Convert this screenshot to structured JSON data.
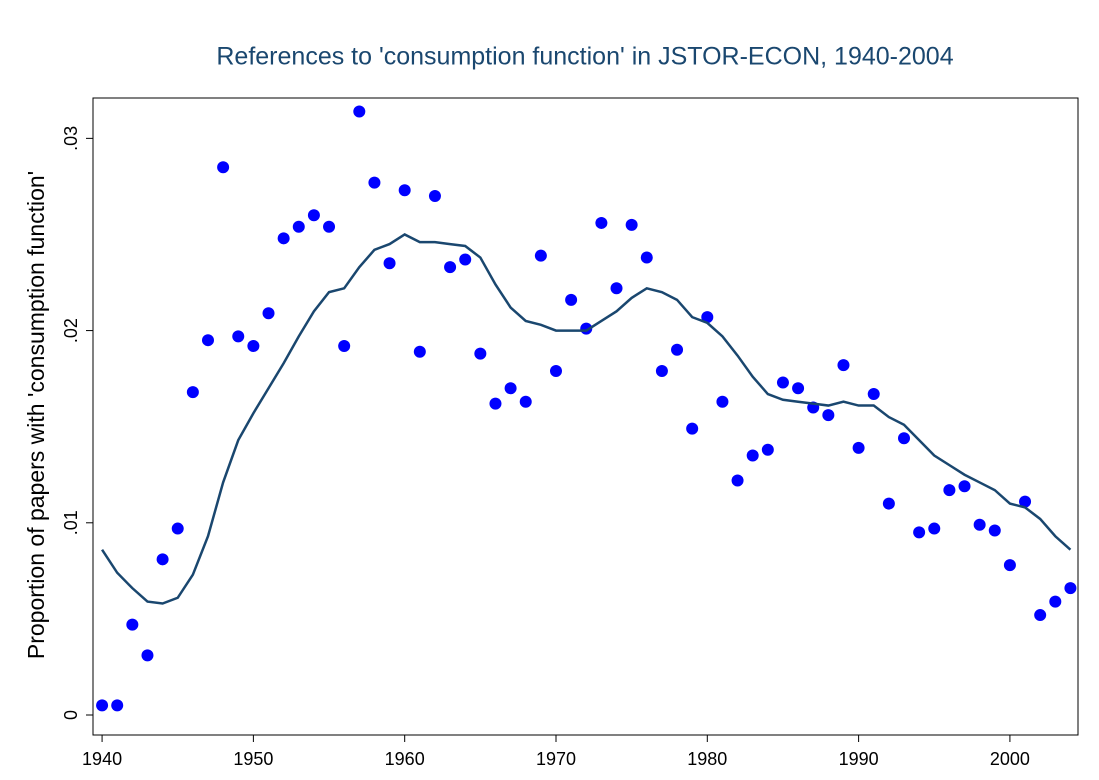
{
  "chart_data": {
    "type": "scatter",
    "title": "References to 'consumption function' in JSTOR-ECON, 1940-2004",
    "y_label": "Proportion of papers with 'consumption function'",
    "x": [
      1940,
      1941,
      1942,
      1943,
      1944,
      1945,
      1946,
      1947,
      1948,
      1949,
      1950,
      1951,
      1952,
      1953,
      1954,
      1955,
      1956,
      1957,
      1958,
      1959,
      1960,
      1961,
      1962,
      1963,
      1964,
      1965,
      1966,
      1967,
      1968,
      1969,
      1970,
      1971,
      1972,
      1973,
      1974,
      1975,
      1976,
      1977,
      1978,
      1979,
      1980,
      1981,
      1982,
      1983,
      1984,
      1985,
      1986,
      1987,
      1988,
      1989,
      1990,
      1991,
      1992,
      1993,
      1994,
      1995,
      1996,
      1997,
      1998,
      1999,
      2000,
      2001,
      2002,
      2003,
      2004
    ],
    "series": [
      {
        "type": "scatter",
        "color": "#0000ff",
        "values": [
          0.0005,
          0.0005,
          0.0047,
          0.0031,
          0.0081,
          0.0097,
          0.0168,
          0.0195,
          0.0285,
          0.0197,
          0.0192,
          0.0209,
          0.0248,
          0.0254,
          0.026,
          0.0254,
          0.0192,
          0.0314,
          0.0277,
          0.0235,
          0.0273,
          0.0189,
          0.027,
          0.0233,
          0.0237,
          0.0188,
          0.0162,
          0.017,
          0.0163,
          0.0239,
          0.0179,
          0.0216,
          0.0201,
          0.0256,
          0.0222,
          0.0255,
          0.0238,
          0.0179,
          0.019,
          0.0149,
          0.0207,
          0.0163,
          0.0122,
          0.0135,
          0.0138,
          0.0173,
          0.017,
          0.016,
          0.0156,
          0.0182,
          0.0139,
          0.0167,
          0.011,
          0.0144,
          0.0095,
          0.0097,
          0.0117,
          0.0119,
          0.0099,
          0.0096,
          0.0078,
          0.0111,
          0.0052,
          0.0059,
          0.0066
        ]
      },
      {
        "type": "line",
        "color": "#1a476f",
        "values": [
          0.0086,
          0.0074,
          0.0066,
          0.0059,
          0.0058,
          0.0061,
          0.0073,
          0.0093,
          0.0121,
          0.0143,
          0.0157,
          0.017,
          0.0183,
          0.0197,
          0.021,
          0.022,
          0.0222,
          0.0233,
          0.0242,
          0.0245,
          0.025,
          0.0246,
          0.0246,
          0.0245,
          0.0244,
          0.0238,
          0.0224,
          0.0212,
          0.0205,
          0.0203,
          0.02,
          0.02,
          0.02,
          0.0205,
          0.021,
          0.0217,
          0.0222,
          0.022,
          0.0216,
          0.0207,
          0.0204,
          0.0197,
          0.0187,
          0.0176,
          0.0167,
          0.0164,
          0.0163,
          0.0162,
          0.0161,
          0.0163,
          0.0161,
          0.0161,
          0.0155,
          0.0151,
          0.0143,
          0.0135,
          0.013,
          0.0125,
          0.0121,
          0.0117,
          0.011,
          0.0108,
          0.0102,
          0.0093,
          0.0086
        ]
      }
    ],
    "xlim": [
      1939.4,
      2004.5
    ],
    "xticks": [
      1940,
      1950,
      1960,
      1970,
      1980,
      1990,
      2000
    ],
    "ylim": [
      -0.00104,
      0.0321
    ],
    "yticks": [
      0,
      {
        "value": 0.01,
        "label": ".01"
      },
      {
        "value": 0.02,
        "label": ".02"
      },
      {
        "value": 0.03,
        "label": ".03"
      }
    ]
  }
}
